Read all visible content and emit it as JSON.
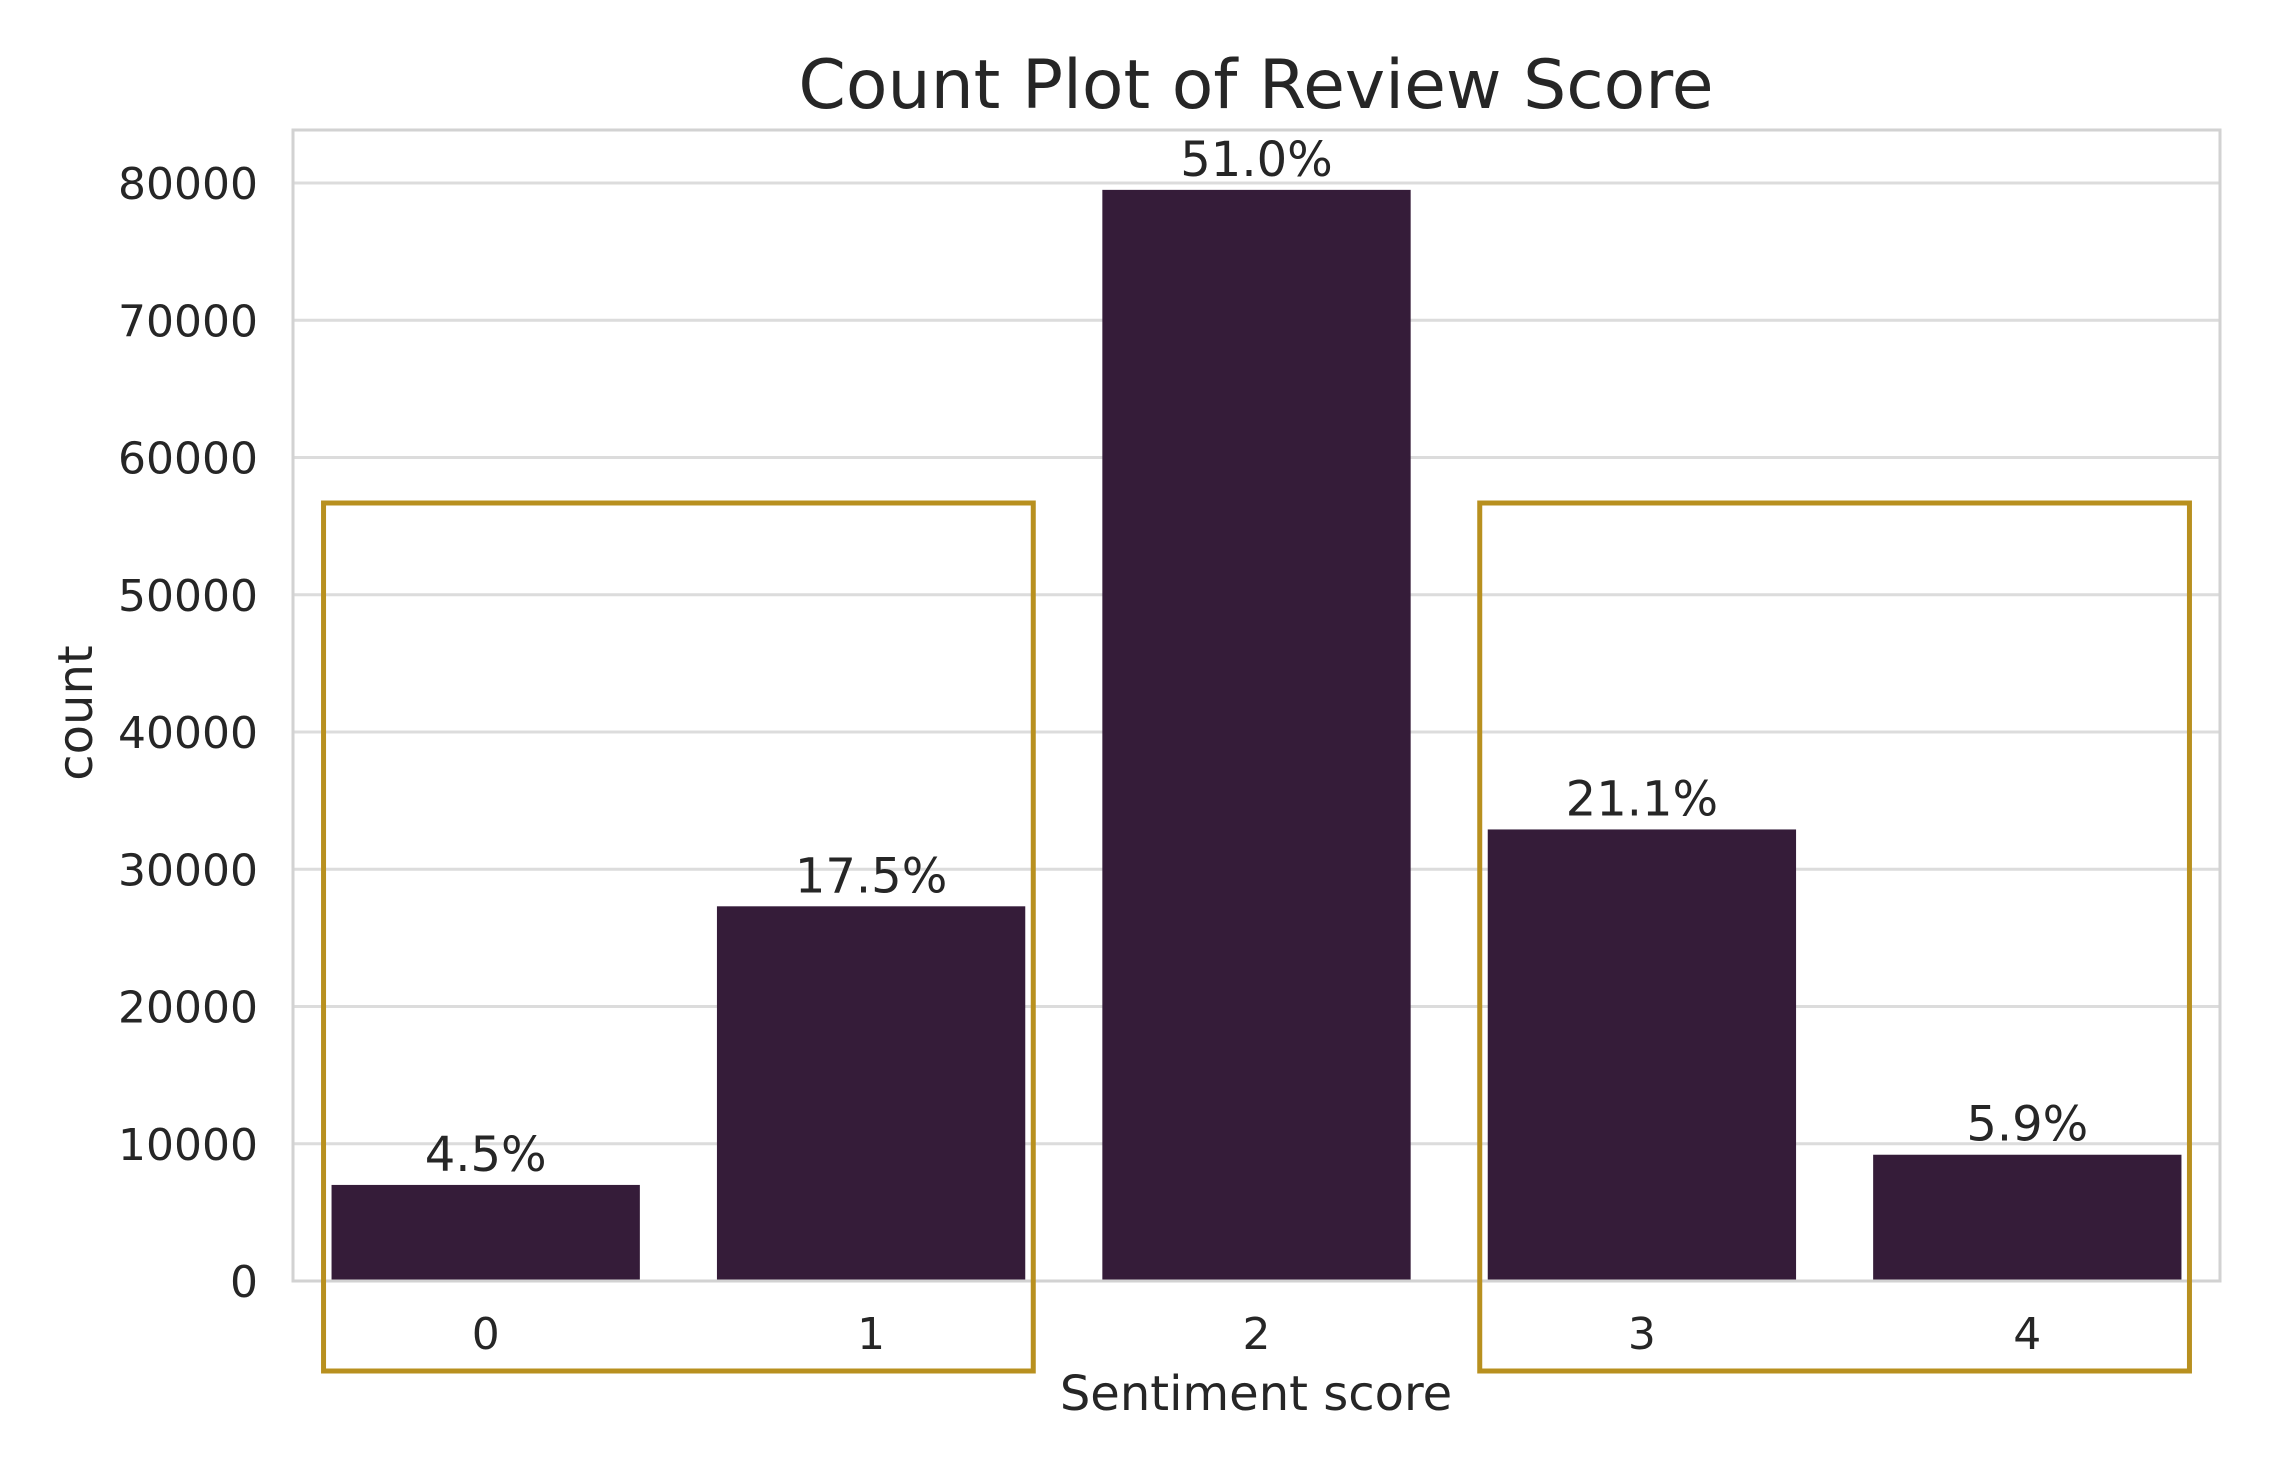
{
  "chart_data": {
    "type": "bar",
    "title": "Count Plot of Review Score",
    "xlabel": "Sentiment score",
    "ylabel": "count",
    "categories": [
      "0",
      "1",
      "2",
      "3",
      "4"
    ],
    "values": [
      7000,
      27300,
      79500,
      32900,
      9200
    ],
    "bar_labels": [
      "4.5%",
      "17.5%",
      "51.0%",
      "21.1%",
      "5.9%"
    ],
    "ylim": [
      0,
      84000
    ],
    "yticks": [
      0,
      10000,
      20000,
      30000,
      40000,
      50000,
      60000,
      70000,
      80000
    ],
    "grid": true,
    "bar_color": "#351c39",
    "highlight_color": "#b8901f",
    "highlight_groups": [
      [
        "0",
        "1"
      ],
      [
        "3",
        "4"
      ]
    ]
  }
}
